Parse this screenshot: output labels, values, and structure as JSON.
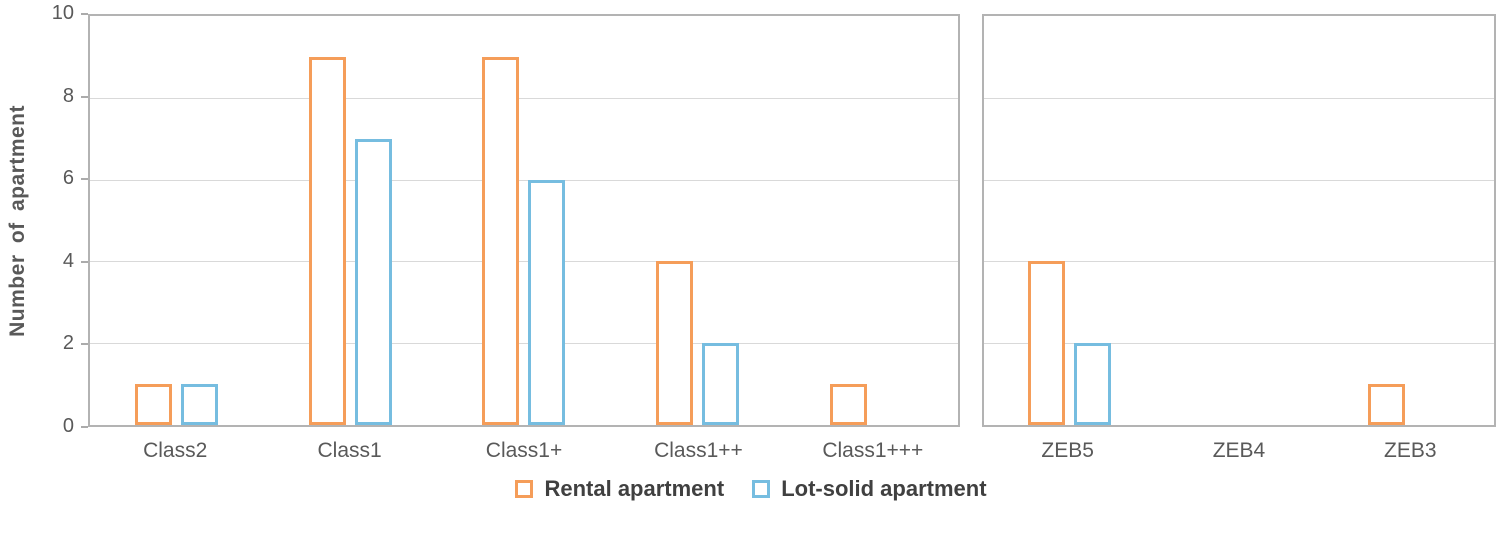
{
  "chart_data": {
    "type": "bar",
    "title": "",
    "xlabel": "",
    "ylabel": "Number of apartment",
    "ylim": [
      0,
      10
    ],
    "yticks": [
      0,
      2,
      4,
      6,
      8,
      10
    ],
    "grid": true,
    "bar_style": "outlined",
    "legend_position": "bottom",
    "panels": [
      {
        "name": "class-panel",
        "categories": [
          "Class2",
          "Class1",
          "Class1+",
          "Class1++",
          "Class1+++"
        ],
        "series": [
          {
            "name": "Rental apartment",
            "values": [
              1,
              9,
              9,
              4,
              1
            ]
          },
          {
            "name": "Lot-solid apartment",
            "values": [
              1,
              7,
              6,
              2,
              0
            ]
          }
        ]
      },
      {
        "name": "zeb-panel",
        "categories": [
          "ZEB5",
          "ZEB4",
          "ZEB3"
        ],
        "series": [
          {
            "name": "Rental apartment",
            "values": [
              4,
              0,
              1
            ]
          },
          {
            "name": "Lot-solid apartment",
            "values": [
              2,
              0,
              0
            ]
          }
        ]
      }
    ],
    "legend": [
      {
        "label": "Rental apartment",
        "color": "#F59D59"
      },
      {
        "label": "Lot-solid apartment",
        "color": "#76BDE0"
      }
    ],
    "colors": {
      "rental": "#F59D59",
      "lot_solid": "#76BDE0",
      "grid": "#d9d9d9",
      "axis": "#b3b3b3",
      "text": "#595959"
    }
  }
}
